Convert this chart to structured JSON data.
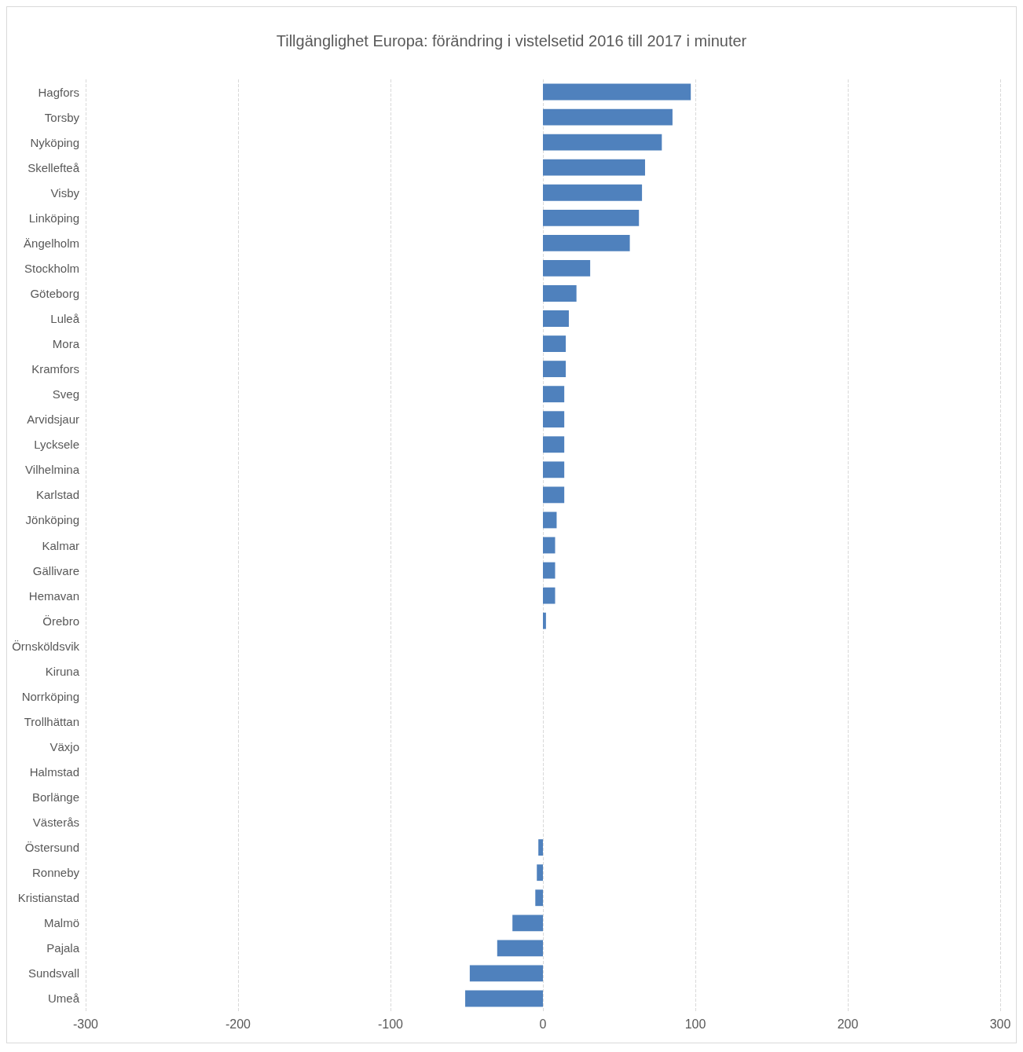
{
  "chart_data": {
    "type": "bar",
    "orientation": "horizontal",
    "title": "Tillgänglighet Europa: förändring i vistelsetid 2016 till 2017 i minuter",
    "categories": [
      "Hagfors",
      "Torsby",
      "Nyköping",
      "Skellefteå",
      "Visby",
      "Linköping",
      "Ängelholm",
      "Stockholm",
      "Göteborg",
      "Luleå",
      "Mora",
      "Kramfors",
      "Sveg",
      "Arvidsjaur",
      "Lycksele",
      "Vilhelmina",
      "Karlstad",
      "Jönköping",
      "Kalmar",
      "Gällivare",
      "Hemavan",
      "Örebro",
      "Örnsköldsvik",
      "Kiruna",
      "Norrköping",
      "Trollhättan",
      "Växjo",
      "Halmstad",
      "Borlänge",
      "Västerås",
      "Östersund",
      "Ronneby",
      "Kristianstad",
      "Malmö",
      "Pajala",
      "Sundsvall",
      "Umeå"
    ],
    "values": [
      97,
      85,
      78,
      67,
      65,
      63,
      57,
      31,
      22,
      17,
      15,
      15,
      14,
      14,
      14,
      14,
      14,
      9,
      8,
      8,
      8,
      2,
      0,
      0,
      0,
      0,
      0,
      0,
      0,
      0,
      -3,
      -4,
      -5,
      -20,
      -30,
      -48,
      -51
    ],
    "color": "#4f81bd",
    "xlim": [
      -300,
      300
    ],
    "xticks": [
      -300,
      -200,
      -100,
      0,
      100,
      200,
      300
    ],
    "grid": "x"
  }
}
